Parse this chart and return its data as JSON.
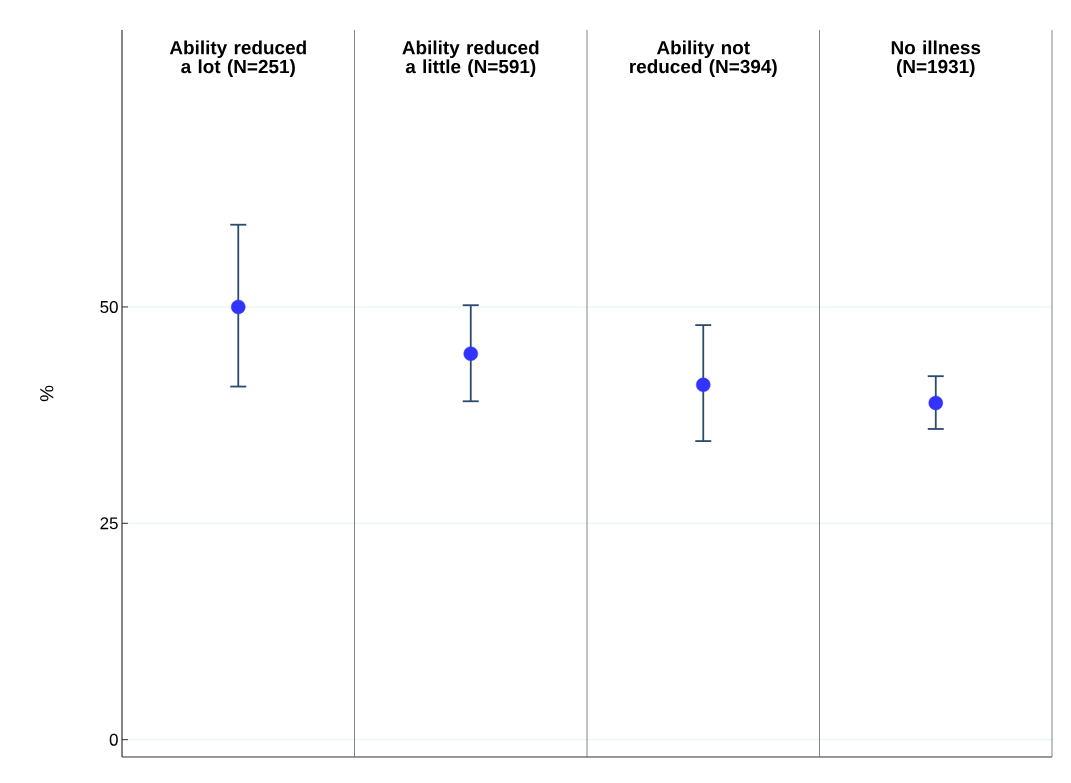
{
  "chart_data": {
    "type": "scatter",
    "ylabel": "%",
    "categories": [
      "Ability reduced a lot (N=251)",
      "Ability reduced a little (N=591)",
      "Ability not reduced (N=394)",
      "No illness (N=1931)"
    ],
    "values": [
      50.0,
      44.6,
      41.0,
      38.9
    ],
    "errors": [
      [
        40.8,
        59.5
      ],
      [
        39.1,
        50.2
      ],
      [
        34.5,
        47.9
      ],
      [
        35.9,
        42.0
      ]
    ],
    "color": "#3333ff",
    "ylim": [
      -2,
      82
    ],
    "yticks": [
      0,
      25,
      50
    ],
    "grid": "y"
  }
}
